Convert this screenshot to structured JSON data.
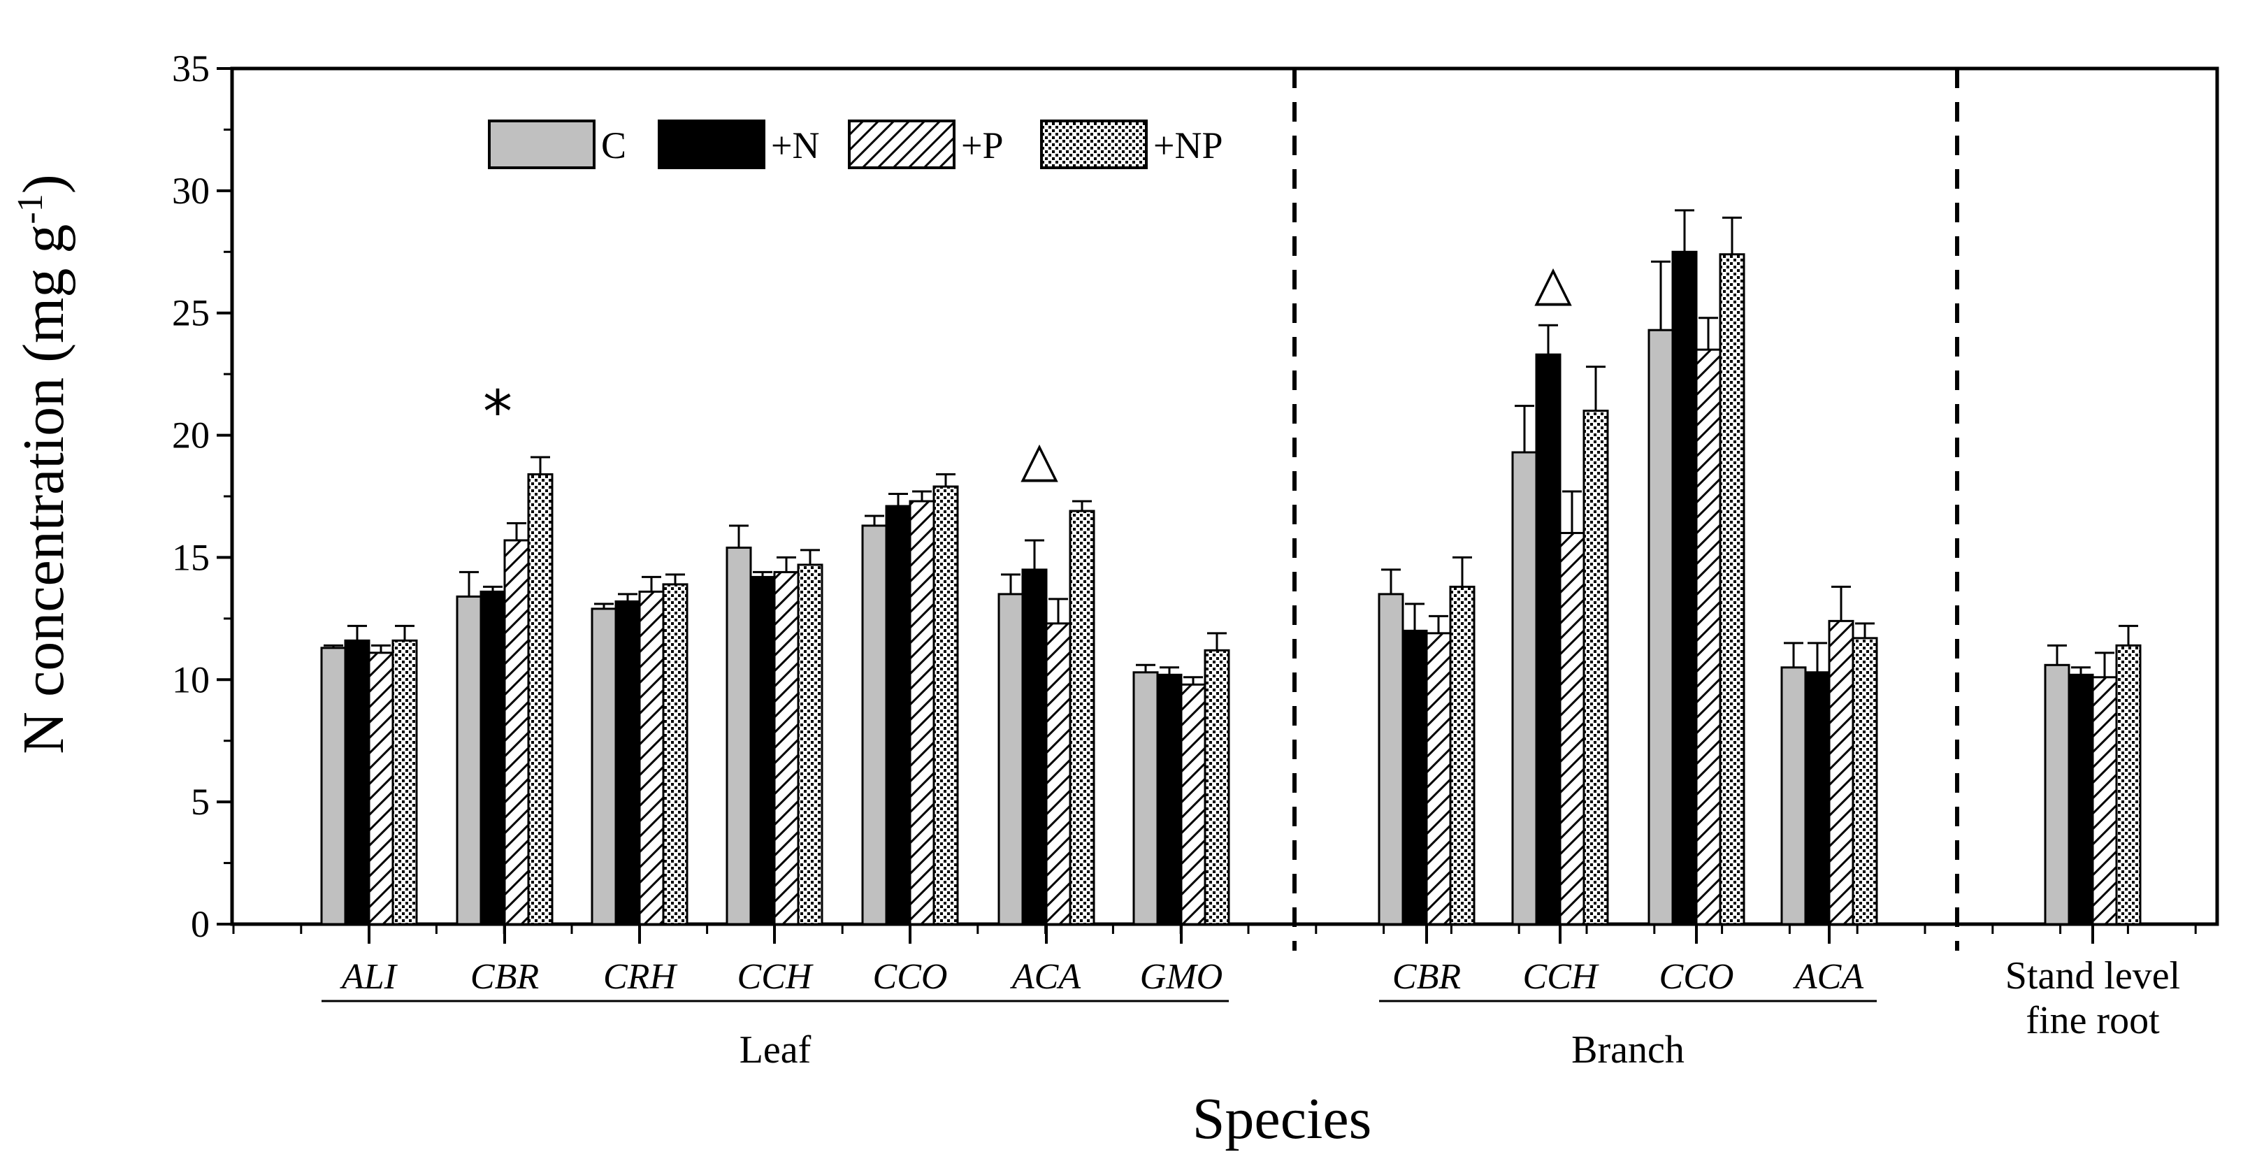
{
  "chart_data": {
    "type": "bar",
    "title": "",
    "xlabel": "Species",
    "ylabel": "N concentration (mg g",
    "ylabel_sup": "-1",
    "ylabel_close": ")",
    "ylim": [
      0,
      35
    ],
    "yticks": [
      "0",
      "5",
      "10",
      "15",
      "20",
      "25",
      "30",
      "35"
    ],
    "legend_position": "top-left",
    "series": [
      {
        "name": "C",
        "fill": "#c0c0c0",
        "pattern": "solid"
      },
      {
        "name": "+N",
        "fill": "#000000",
        "pattern": "solid"
      },
      {
        "name": "+P",
        "fill": "#ffffff",
        "pattern": "hatch"
      },
      {
        "name": "+NP",
        "fill": "#ffffff",
        "pattern": "dots"
      }
    ],
    "groups": [
      {
        "label": "Leaf",
        "label_lines": [
          "Leaf"
        ],
        "italic": true,
        "categories": [
          {
            "name": "ALI",
            "values": [
              11.3,
              11.6,
              11.1,
              11.6
            ],
            "errors": [
              0.1,
              0.6,
              0.3,
              0.6
            ],
            "annotation": ""
          },
          {
            "name": "CBR",
            "values": [
              13.4,
              13.6,
              15.7,
              18.4
            ],
            "errors": [
              1.0,
              0.2,
              0.7,
              0.7
            ],
            "annotation": "*"
          },
          {
            "name": "CRH",
            "values": [
              12.9,
              13.2,
              13.6,
              13.9
            ],
            "errors": [
              0.2,
              0.3,
              0.6,
              0.4
            ],
            "annotation": ""
          },
          {
            "name": "CCH",
            "values": [
              15.4,
              14.2,
              14.4,
              14.7
            ],
            "errors": [
              0.9,
              0.2,
              0.6,
              0.6
            ],
            "annotation": ""
          },
          {
            "name": "CCO",
            "values": [
              16.3,
              17.1,
              17.3,
              17.9
            ],
            "errors": [
              0.4,
              0.5,
              0.4,
              0.5
            ],
            "annotation": ""
          },
          {
            "name": "ACA",
            "values": [
              13.5,
              14.5,
              12.3,
              16.9
            ],
            "errors": [
              0.8,
              1.2,
              1.0,
              0.4
            ],
            "annotation": "△"
          },
          {
            "name": "GMO",
            "values": [
              10.3,
              10.2,
              9.8,
              11.2
            ],
            "errors": [
              0.3,
              0.3,
              0.3,
              0.7
            ],
            "annotation": ""
          }
        ]
      },
      {
        "label": "Branch",
        "label_lines": [
          "Branch"
        ],
        "italic": true,
        "categories": [
          {
            "name": "CBR",
            "values": [
              13.5,
              12.0,
              11.9,
              13.8
            ],
            "errors": [
              1.0,
              1.1,
              0.7,
              1.2
            ],
            "annotation": ""
          },
          {
            "name": "CCH",
            "values": [
              19.3,
              23.3,
              16.0,
              21.0
            ],
            "errors": [
              1.9,
              1.2,
              1.7,
              1.8
            ],
            "annotation": "△"
          },
          {
            "name": "CCO",
            "values": [
              24.3,
              27.5,
              23.5,
              27.4
            ],
            "errors": [
              2.8,
              1.7,
              1.3,
              1.5
            ],
            "annotation": ""
          },
          {
            "name": "ACA",
            "values": [
              10.5,
              10.3,
              12.4,
              11.7
            ],
            "errors": [
              1.0,
              1.2,
              1.4,
              0.6
            ],
            "annotation": ""
          }
        ]
      },
      {
        "label": "Stand level fine root",
        "label_lines": [
          "Stand level",
          "fine root"
        ],
        "italic": false,
        "categories": [
          {
            "name": "",
            "values": [
              10.6,
              10.2,
              10.1,
              11.4
            ],
            "errors": [
              0.8,
              0.3,
              1.0,
              0.8
            ],
            "annotation": ""
          }
        ]
      }
    ]
  }
}
